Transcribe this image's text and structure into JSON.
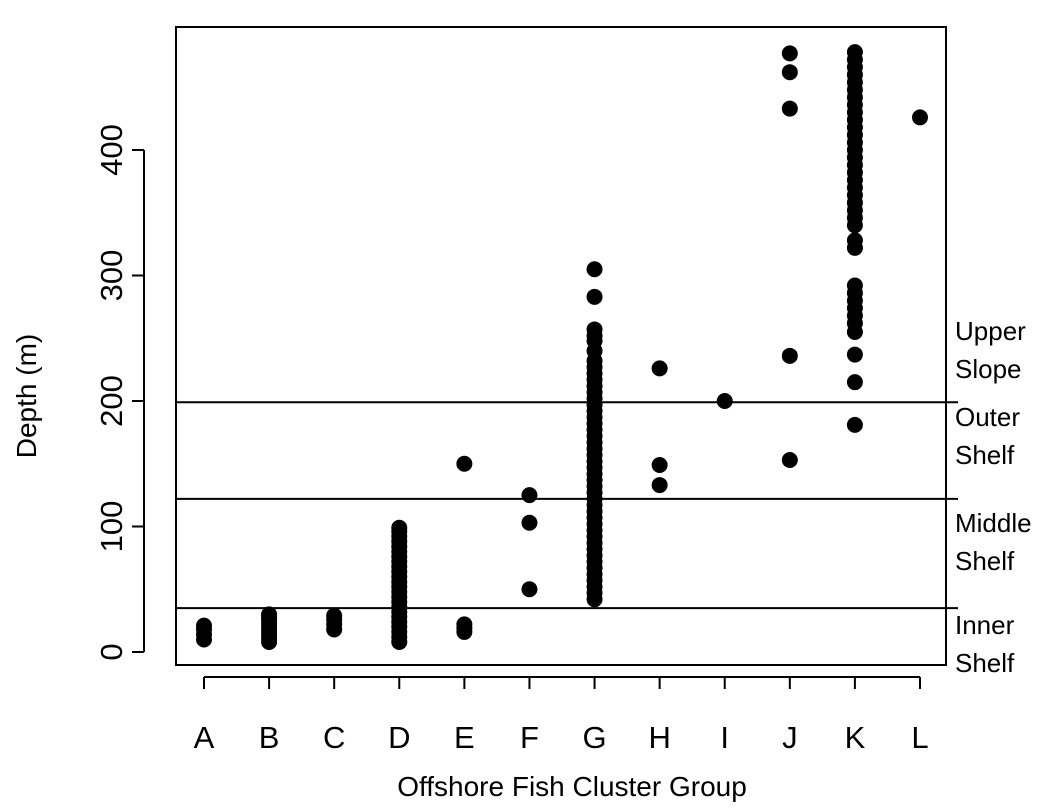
{
  "chart_data": {
    "type": "scatter",
    "xlabel": "Offshore Fish Cluster Group",
    "ylabel": "Depth (m)",
    "categories": [
      "A",
      "B",
      "C",
      "D",
      "E",
      "F",
      "G",
      "H",
      "I",
      "J",
      "K",
      "L"
    ],
    "yticks": [
      0,
      100,
      200,
      300,
      400
    ],
    "ylim": [
      -12,
      500
    ],
    "grid": false,
    "marker_color": "#000000",
    "reference_lines": [
      {
        "depth": 35
      },
      {
        "depth": 122
      },
      {
        "depth": 199
      }
    ],
    "zone_labels": [
      {
        "line1": "Upper",
        "line2": "Slope"
      },
      {
        "line1": "Outer",
        "line2": "Shelf"
      },
      {
        "line1": "Middle",
        "line2": "Shelf"
      },
      {
        "line1": "Inner",
        "line2": "Shelf"
      }
    ],
    "points": [
      {
        "group": "A",
        "depths": [
          10,
          14,
          18,
          21
        ]
      },
      {
        "group": "B",
        "depths": [
          8,
          11,
          14,
          17,
          20,
          23,
          26,
          28,
          30
        ]
      },
      {
        "group": "C",
        "depths": [
          18,
          22,
          26,
          29
        ]
      },
      {
        "group": "D",
        "depths": [
          8,
          12,
          16,
          20,
          24,
          28,
          32,
          36,
          40,
          44,
          48,
          52,
          56,
          60,
          64,
          68,
          72,
          76,
          80,
          84,
          88,
          92,
          96,
          99
        ]
      },
      {
        "group": "E",
        "depths": [
          16,
          19,
          22,
          150
        ]
      },
      {
        "group": "F",
        "depths": [
          50,
          103,
          125
        ]
      },
      {
        "group": "G",
        "depths": [
          42,
          47,
          52,
          57,
          62,
          67,
          72,
          77,
          82,
          87,
          92,
          97,
          102,
          107,
          112,
          117,
          122,
          127,
          132,
          137,
          142,
          147,
          152,
          157,
          162,
          167,
          172,
          177,
          182,
          187,
          192,
          197,
          202,
          207,
          212,
          217,
          222,
          227,
          232,
          240,
          248,
          252,
          257,
          283,
          305
        ]
      },
      {
        "group": "H",
        "depths": [
          133,
          149,
          226
        ]
      },
      {
        "group": "I",
        "depths": [
          200
        ]
      },
      {
        "group": "J",
        "depths": [
          153,
          236,
          433,
          462,
          477
        ]
      },
      {
        "group": "K",
        "depths": [
          181,
          215,
          237,
          255,
          262,
          268,
          274,
          280,
          286,
          292,
          322,
          328,
          340,
          346,
          352,
          358,
          364,
          370,
          376,
          382,
          388,
          394,
          400,
          406,
          412,
          418,
          424,
          430,
          436,
          442,
          448,
          454,
          460,
          466,
          472,
          478
        ]
      },
      {
        "group": "L",
        "depths": [
          426
        ]
      }
    ]
  }
}
